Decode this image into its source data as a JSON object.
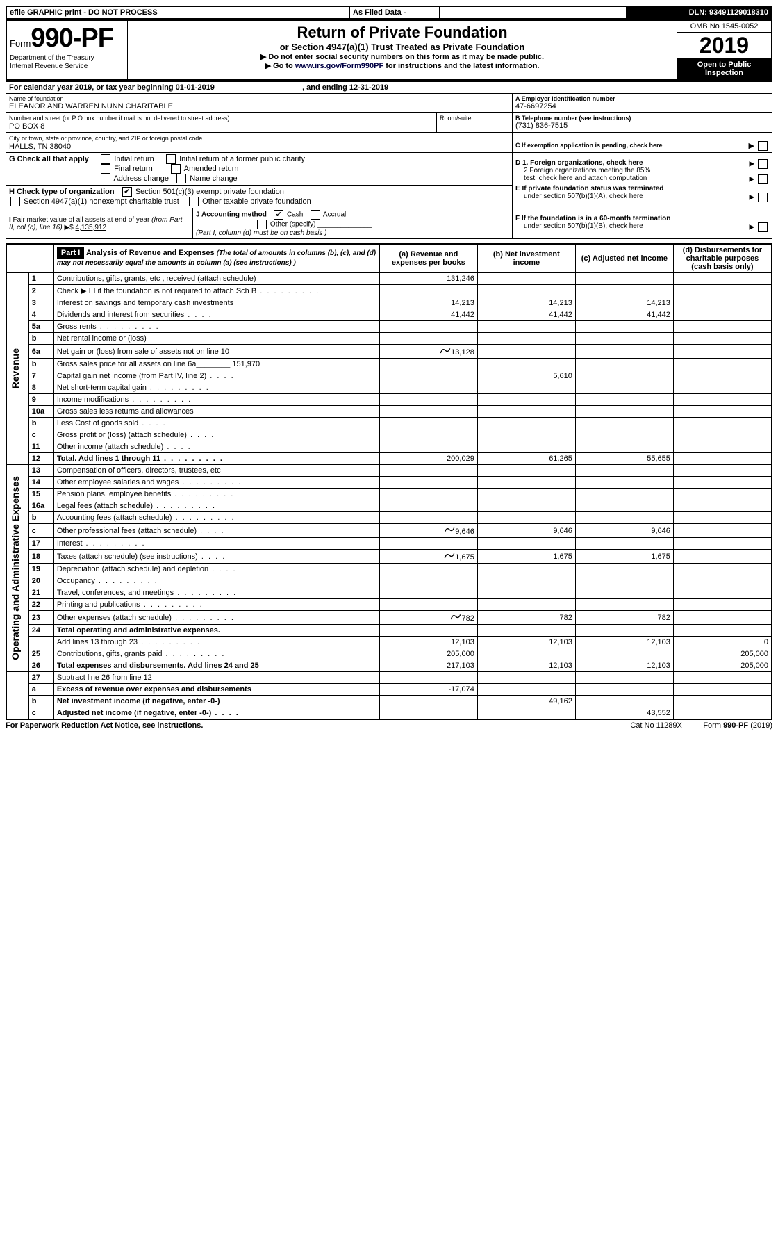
{
  "header_bar": {
    "efile": "efile GRAPHIC print - DO NOT PROCESS",
    "as_filed": "As Filed Data -",
    "dln_label": "DLN:",
    "dln": "93491129018310"
  },
  "form": {
    "form_word": "Form",
    "number": "990-PF",
    "dept1": "Department of the Treasury",
    "dept2": "Internal Revenue Service",
    "title": "Return of Private Foundation",
    "subtitle": "or Section 4947(a)(1) Trust Treated as Private Foundation",
    "note1": "▶ Do not enter social security numbers on this form as it may be made public.",
    "note2_pre": "▶ Go to ",
    "note2_link": "www.irs.gov/Form990PF",
    "note2_post": " for instructions and the latest information.",
    "omb": "OMB No 1545-0052",
    "year": "2019",
    "open": "Open to Public Inspection"
  },
  "cal": {
    "text_a": "For calendar year 2019, or tax year beginning ",
    "begin": "01-01-2019",
    "text_b": ", and ending ",
    "end": "12-31-2019"
  },
  "id": {
    "name_lbl": "Name of foundation",
    "name": "ELEANOR AND WARREN NUNN CHARITABLE",
    "addr_lbl": "Number and street (or P O box number if mail is not delivered to street address)",
    "room_lbl": "Room/suite",
    "addr": "PO BOX 8",
    "city_lbl": "City or town, state or province, country, and ZIP or foreign postal code",
    "city": "HALLS, TN 38040",
    "a_lbl": "A Employer identification number",
    "ein": "47-6697254",
    "b_lbl": "B Telephone number (see instructions)",
    "phone": "(731) 836-7515",
    "c_lbl": "C If exemption application is pending, check here"
  },
  "g": {
    "lbl": "G Check all that apply",
    "o1": "Initial return",
    "o2": "Initial return of a former public charity",
    "o3": "Final return",
    "o4": "Amended return",
    "o5": "Address change",
    "o6": "Name change"
  },
  "h": {
    "lbl": "H Check type of organization",
    "o1": "Section 501(c)(3) exempt private foundation",
    "o2": "Section 4947(a)(1) nonexempt charitable trust",
    "o3": "Other taxable private foundation"
  },
  "i": {
    "lbl": "I Fair market value of all assets at end of year (from Part II, col (c), line 16) ▶$ ",
    "val": "4,135,912"
  },
  "j": {
    "lbl": "J Accounting method",
    "o1": "Cash",
    "o2": "Accrual",
    "o3": "Other (specify)",
    "note": "(Part I, column (d) must be on cash basis )"
  },
  "d": {
    "l1": "D 1. Foreign organizations, check here",
    "l2a": "2 Foreign organizations meeting the 85%",
    "l2b": "test, check here and attach computation",
    "e_a": "E  If private foundation status was terminated",
    "e_b": "under section 507(b)(1)(A), check here",
    "f_a": "F  If the foundation is in a 60-month termination",
    "f_b": "under section 507(b)(1)(B), check here"
  },
  "part1": {
    "label": "Part I",
    "title": "Analysis of Revenue and Expenses",
    "sub": " (The total of amounts in columns (b), (c), and (d) may not necessarily equal the amounts in column (a) (see instructions) )",
    "col_a": "(a) Revenue and expenses per books",
    "col_b": "(b) Net investment income",
    "col_c": "(c) Adjusted net income",
    "col_d": "(d) Disbursements for charitable purposes (cash basis only)"
  },
  "side": {
    "rev": "Revenue",
    "exp": "Operating and Administrative Expenses"
  },
  "rows": [
    {
      "n": "1",
      "d": "Contributions, gifts, grants, etc , received (attach schedule)",
      "a": "131,246",
      "pen": false,
      "bold": false
    },
    {
      "n": "2",
      "d": "Check ▶ ☐ if the foundation is not required to attach Sch B",
      "dots": true
    },
    {
      "n": "3",
      "d": "Interest on savings and temporary cash investments",
      "a": "14,213",
      "b": "14,213",
      "c": "14,213"
    },
    {
      "n": "4",
      "d": "Dividends and interest from securities",
      "a": "41,442",
      "b": "41,442",
      "c": "41,442",
      "dots_s": true
    },
    {
      "n": "5a",
      "d": "Gross rents",
      "dots": true
    },
    {
      "n": "b",
      "d": "Net rental income or (loss)"
    },
    {
      "n": "6a",
      "d": "Net gain or (loss) from sale of assets not on line 10",
      "a": "13,128",
      "pen": true
    },
    {
      "n": "b",
      "d": "Gross sales price for all assets on line 6a________ 151,970"
    },
    {
      "n": "7",
      "d": "Capital gain net income (from Part IV, line 2)",
      "b": "5,610",
      "dots_s": true
    },
    {
      "n": "8",
      "d": "Net short-term capital gain",
      "dots": true
    },
    {
      "n": "9",
      "d": "Income modifications",
      "dots": true
    },
    {
      "n": "10a",
      "d": "Gross sales less returns and allowances"
    },
    {
      "n": "b",
      "d": "Less  Cost of goods sold",
      "dots_s": true
    },
    {
      "n": "c",
      "d": "Gross profit or (loss) (attach schedule)",
      "dots_s": true
    },
    {
      "n": "11",
      "d": "Other income (attach schedule)",
      "dots_s": true
    },
    {
      "n": "12",
      "d": "Total. Add lines 1 through 11",
      "a": "200,029",
      "b": "61,265",
      "c": "55,655",
      "bold": true,
      "dots": true
    }
  ],
  "exp_rows": [
    {
      "n": "13",
      "d": "Compensation of officers, directors, trustees, etc"
    },
    {
      "n": "14",
      "d": "Other employee salaries and wages",
      "dots": true
    },
    {
      "n": "15",
      "d": "Pension plans, employee benefits",
      "dots": true
    },
    {
      "n": "16a",
      "d": "Legal fees (attach schedule)",
      "dots": true
    },
    {
      "n": "b",
      "d": "Accounting fees (attach schedule)",
      "dots": true
    },
    {
      "n": "c",
      "d": "Other professional fees (attach schedule)",
      "a": "9,646",
      "b": "9,646",
      "c": "9,646",
      "pen": true,
      "dots_s": true
    },
    {
      "n": "17",
      "d": "Interest",
      "dots": true
    },
    {
      "n": "18",
      "d": "Taxes (attach schedule) (see instructions)",
      "a": "1,675",
      "b": "1,675",
      "c": "1,675",
      "pen": true,
      "dots_s": true
    },
    {
      "n": "19",
      "d": "Depreciation (attach schedule) and depletion",
      "dots_s": true
    },
    {
      "n": "20",
      "d": "Occupancy",
      "dots": true
    },
    {
      "n": "21",
      "d": "Travel, conferences, and meetings",
      "dots": true
    },
    {
      "n": "22",
      "d": "Printing and publications",
      "dots": true
    },
    {
      "n": "23",
      "d": "Other expenses (attach schedule)",
      "a": "782",
      "b": "782",
      "c": "782",
      "pen": true,
      "dots": true
    },
    {
      "n": "24",
      "d": "Total operating and administrative expenses.",
      "bold": true
    },
    {
      "n": "",
      "d": "Add lines 13 through 23",
      "a": "12,103",
      "b": "12,103",
      "c": "12,103",
      "dd": "0",
      "dots": true
    },
    {
      "n": "25",
      "d": "Contributions, gifts, grants paid",
      "a": "205,000",
      "dd": "205,000",
      "dots": true
    },
    {
      "n": "26",
      "d": "Total expenses and disbursements. Add lines 24 and 25",
      "a": "217,103",
      "b": "12,103",
      "c": "12,103",
      "dd": "205,000",
      "bold": true
    }
  ],
  "bot_rows": [
    {
      "n": "27",
      "d": "Subtract line 26 from line 12"
    },
    {
      "n": "a",
      "d": "Excess of revenue over expenses and disbursements",
      "a": "-17,074",
      "bold": true
    },
    {
      "n": "b",
      "d": "Net investment income (if negative, enter -0-)",
      "b": "49,162",
      "bold": true
    },
    {
      "n": "c",
      "d": "Adjusted net income (if negative, enter -0-)",
      "c": "43,552",
      "bold": true,
      "dots_s": true
    }
  ],
  "footer": {
    "left": "For Paperwork Reduction Act Notice, see instructions.",
    "mid": "Cat No 11289X",
    "right": "Form 990-PF (2019)"
  }
}
